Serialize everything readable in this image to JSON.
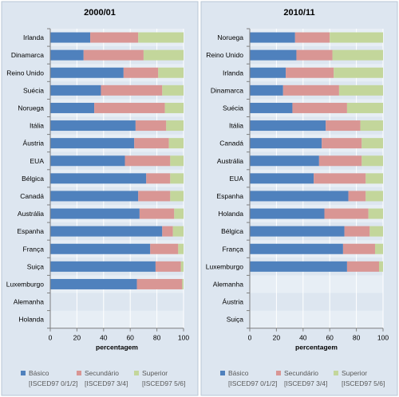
{
  "chart_data": [
    {
      "type": "bar",
      "orientation": "horizontal",
      "stacked": true,
      "title": "2000/01",
      "xlabel": "percentagem",
      "xlim": [
        0,
        100
      ],
      "xticks": [
        0,
        20,
        40,
        60,
        80,
        100
      ],
      "grid": true,
      "categories": [
        "Irlanda",
        "Dinamarca",
        "Reino Unido",
        "Suécia",
        "Noruega",
        "Itália",
        "Áustria",
        "EUA",
        "Bélgica",
        "Canadá",
        "Austrália",
        "Espanha",
        "França",
        "Suiça",
        "Luxemburgo",
        "Alemanha",
        "Holanda"
      ],
      "series": [
        {
          "name": "Básico",
          "values": [
            30,
            25,
            55,
            38,
            33,
            64,
            63,
            56,
            72,
            66,
            67,
            84,
            75,
            79,
            65,
            null,
            null
          ]
        },
        {
          "name": "Secundário",
          "values": [
            36,
            45,
            26,
            46,
            53,
            23,
            26,
            34,
            18,
            24,
            26,
            8,
            21,
            19,
            34,
            null,
            null
          ]
        },
        {
          "name": "Superior",
          "values": [
            34,
            30,
            19,
            16,
            14,
            13,
            11,
            10,
            10,
            10,
            7,
            8,
            4,
            2,
            1,
            null,
            null
          ]
        }
      ]
    },
    {
      "type": "bar",
      "orientation": "horizontal",
      "stacked": true,
      "title": "2010/11",
      "xlabel": "percentagem",
      "xlim": [
        0,
        100
      ],
      "xticks": [
        0,
        20,
        40,
        60,
        80,
        100
      ],
      "grid": true,
      "categories": [
        "Noruega",
        "Reino Unido",
        "Irlanda",
        "Dinamarca",
        "Suécia",
        "Itália",
        "Canadá",
        "Austrália",
        "EUA",
        "Espanha",
        "Holanda",
        "Bélgica",
        "França",
        "Luxemburgo",
        "Alemanha",
        "Áustria",
        "Suiça"
      ],
      "series": [
        {
          "name": "Básico",
          "values": [
            34,
            35,
            27,
            25,
            32,
            57,
            54,
            52,
            48,
            74,
            56,
            71,
            70,
            73,
            null,
            null,
            null
          ]
        },
        {
          "name": "Secundário",
          "values": [
            26,
            27,
            36,
            42,
            41,
            26,
            30,
            32,
            39,
            13,
            33,
            19,
            24,
            24,
            null,
            null,
            null
          ]
        },
        {
          "name": "Superior",
          "values": [
            40,
            38,
            37,
            33,
            27,
            17,
            16,
            16,
            13,
            13,
            11,
            10,
            6,
            3,
            null,
            null,
            null
          ]
        }
      ]
    }
  ],
  "legend": {
    "placement": "bottom",
    "items": [
      {
        "name": "Básico",
        "sub": "[ISCED97 0/1/2]",
        "color": "#4f81bd"
      },
      {
        "name": "Secundário",
        "sub": "[ISCED97 3/4]",
        "color": "#d99694"
      },
      {
        "name": "Superior",
        "sub": "[ISCED97 5/6]",
        "color": "#c3d69b"
      }
    ]
  },
  "colors": {
    "basico": "#4f81bd",
    "secundario": "#d99694",
    "superior": "#c3d69b"
  }
}
